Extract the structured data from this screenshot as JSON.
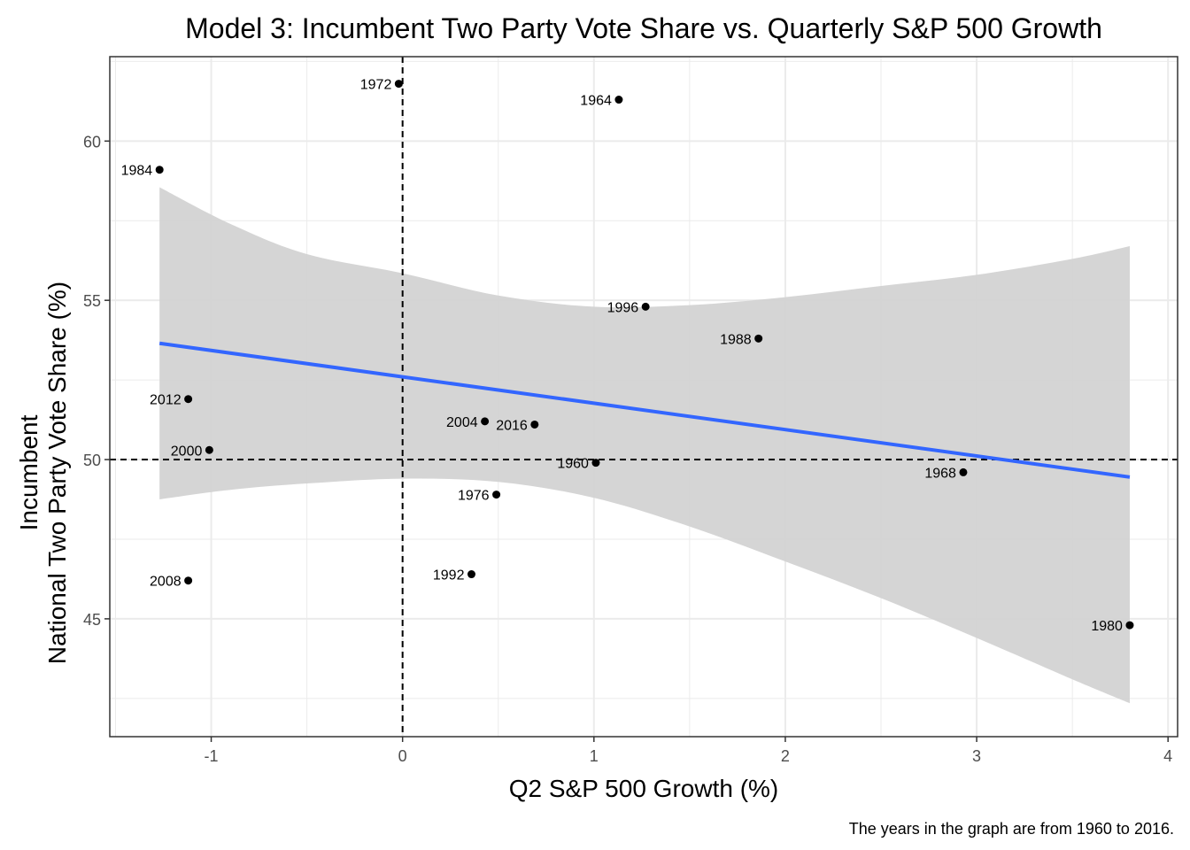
{
  "chart_data": {
    "type": "scatter",
    "title": "Model 3: Incumbent Two Party Vote Share vs. Quarterly S&P 500 Growth",
    "xlabel": "Q2 S&P 500 Growth (%)",
    "ylabel_lines": [
      "Incumbent",
      "National Two Party Vote Share (%)"
    ],
    "caption": "The years in the graph are from 1960 to 2016.",
    "xlim": [
      -1.53,
      4.05
    ],
    "ylim": [
      41.3,
      62.65
    ],
    "x_ticks": [
      -1,
      0,
      1,
      2,
      3,
      4
    ],
    "x_tick_labels": [
      "-1",
      "0",
      "1",
      "2",
      "3",
      "4"
    ],
    "y_ticks": [
      45,
      50,
      55,
      60
    ],
    "y_tick_labels": [
      "45",
      "50",
      "55",
      "60"
    ],
    "grid": true,
    "reference_lines": {
      "vertical_x": 0,
      "horizontal_y": 50
    },
    "points": [
      {
        "label": "1960",
        "x": 1.01,
        "y": 49.9
      },
      {
        "label": "1964",
        "x": 1.13,
        "y": 61.3
      },
      {
        "label": "1968",
        "x": 2.93,
        "y": 49.6
      },
      {
        "label": "1972",
        "x": -0.02,
        "y": 61.8
      },
      {
        "label": "1976",
        "x": 0.49,
        "y": 48.9
      },
      {
        "label": "1980",
        "x": 3.8,
        "y": 44.8
      },
      {
        "label": "1984",
        "x": -1.27,
        "y": 59.1
      },
      {
        "label": "1988",
        "x": 1.86,
        "y": 53.8
      },
      {
        "label": "1992",
        "x": 0.36,
        "y": 46.4
      },
      {
        "label": "1996",
        "x": 1.27,
        "y": 54.8
      },
      {
        "label": "2000",
        "x": -1.01,
        "y": 50.3
      },
      {
        "label": "2004",
        "x": 0.43,
        "y": 51.2
      },
      {
        "label": "2008",
        "x": -1.12,
        "y": 46.2
      },
      {
        "label": "2012",
        "x": -1.12,
        "y": 51.9
      },
      {
        "label": "2016",
        "x": 0.69,
        "y": 51.1
      }
    ],
    "fit_line": {
      "x": [
        -1.27,
        3.8
      ],
      "y": [
        53.65,
        49.45
      ]
    },
    "confidence_band": {
      "x": [
        -1.27,
        -0.9,
        -0.5,
        0.0,
        0.5,
        1.0,
        1.5,
        2.0,
        2.5,
        3.0,
        3.5,
        3.8
      ],
      "upper": [
        58.55,
        57.4,
        56.45,
        55.85,
        55.15,
        54.8,
        54.85,
        55.1,
        55.45,
        55.8,
        56.3,
        56.7
      ],
      "lower": [
        48.75,
        49.05,
        49.25,
        49.4,
        49.3,
        48.8,
        47.9,
        46.8,
        45.65,
        44.4,
        43.1,
        42.35
      ]
    },
    "colors": {
      "fit_line": "#3366ff",
      "band": "#d3d3d3",
      "points": "#000000",
      "grid": "#ebebeb",
      "panel_border": "#333333"
    }
  }
}
